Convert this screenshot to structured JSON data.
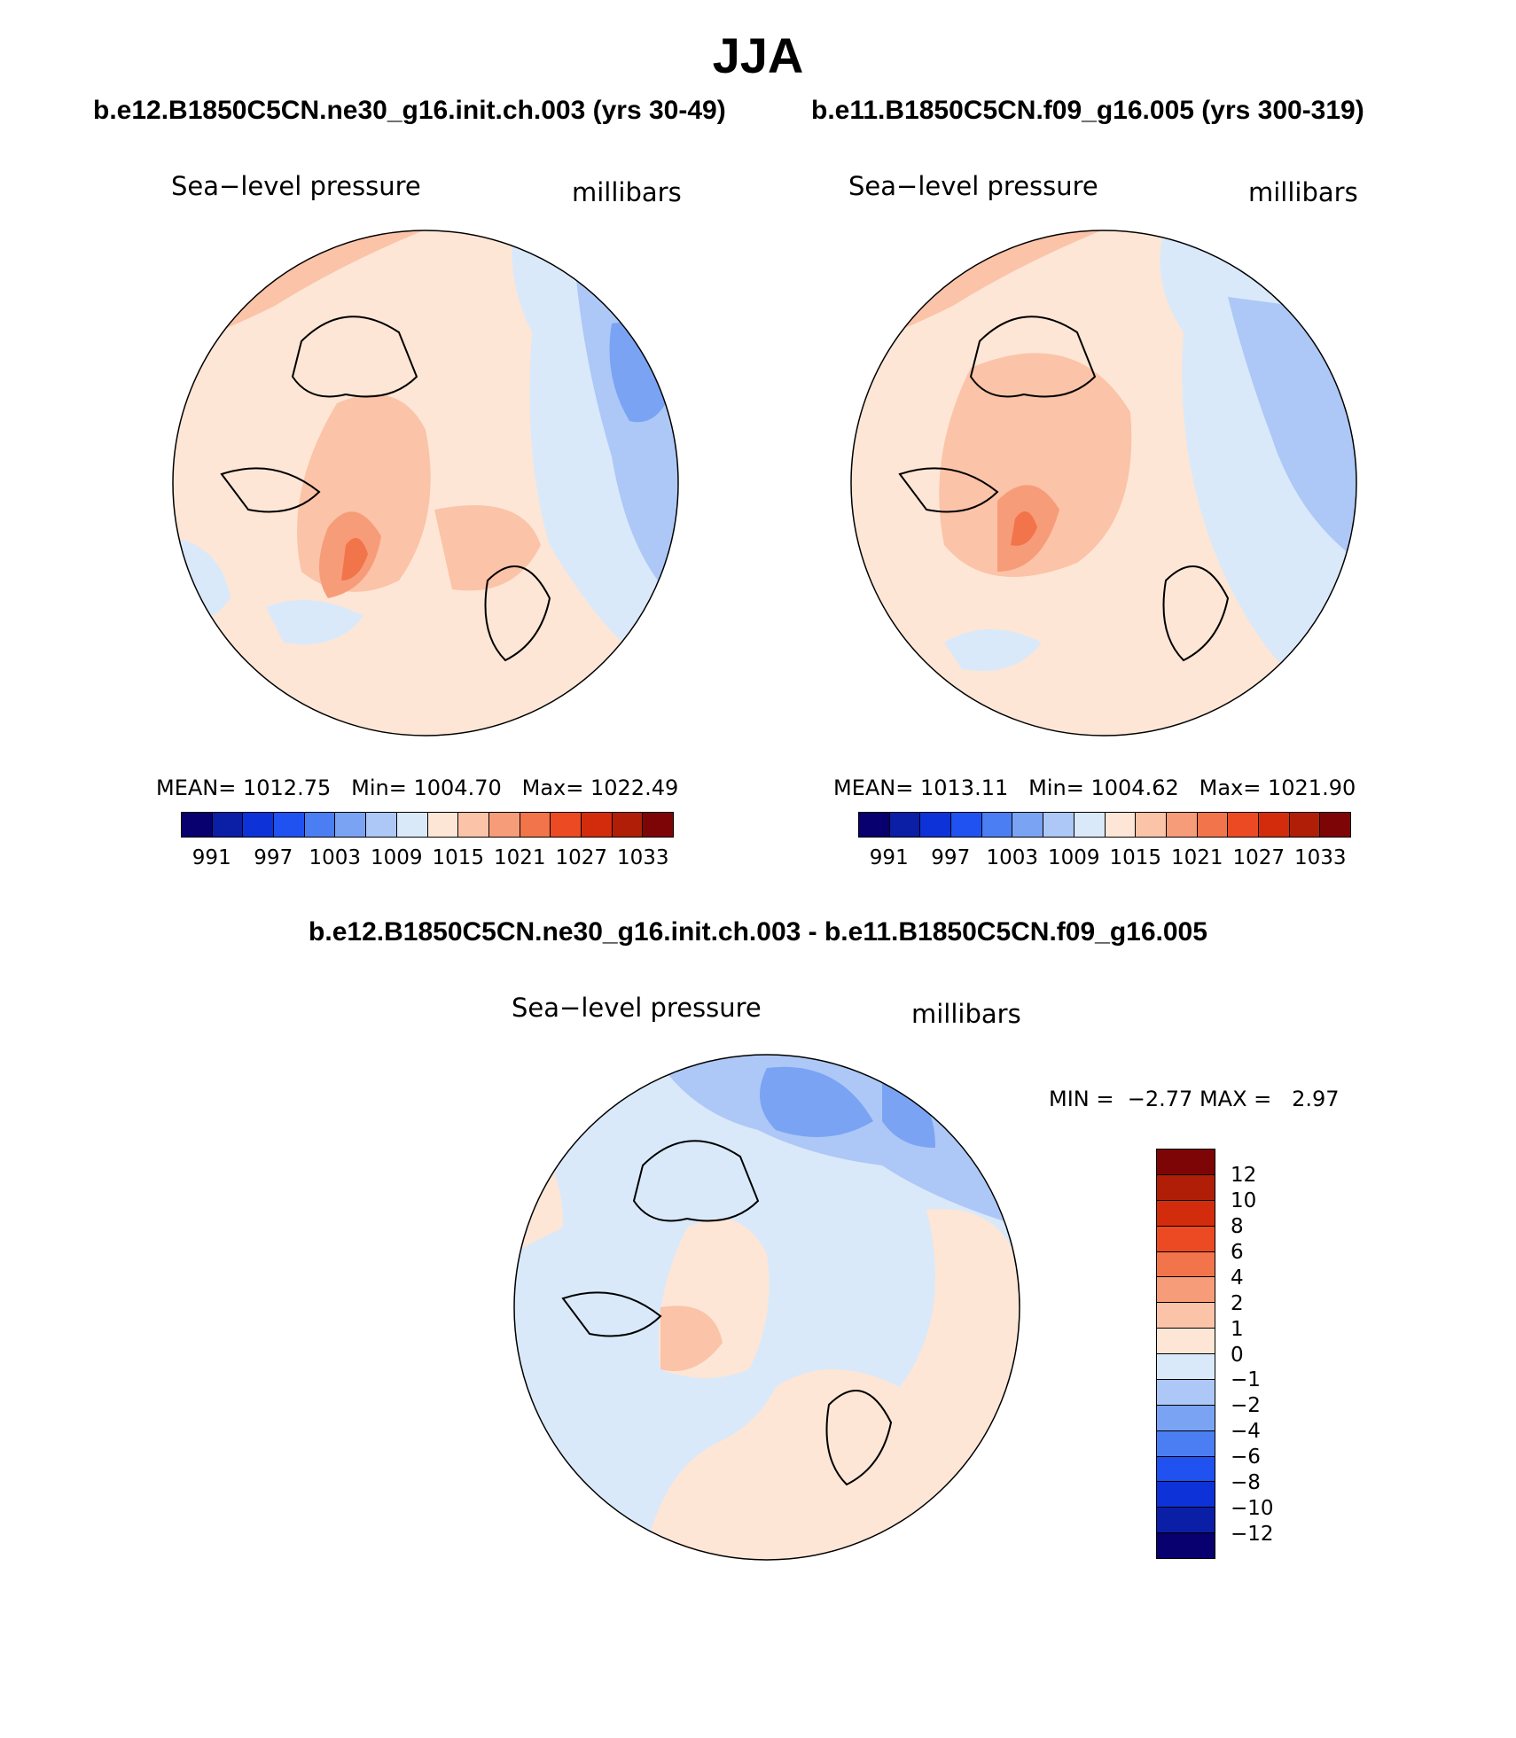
{
  "title": "JJA",
  "panels": [
    {
      "case": "b.e12.B1850C5CN.ne30_g16.init.ch.003 (yrs 30-49)",
      "variable": "Sea−level pressure",
      "units": "millibars",
      "mean_label": "MEAN=",
      "mean": "1012.75",
      "min_label": "Min=",
      "min": "1004.70",
      "max_label": "Max=",
      "max": "1022.49"
    },
    {
      "case": "b.e11.B1850C5CN.f09_g16.005 (yrs 300-319)",
      "variable": "Sea−level pressure",
      "units": "millibars",
      "mean_label": "MEAN=",
      "mean": "1013.11",
      "min_label": "Min=",
      "min": "1004.62",
      "max_label": "Max=",
      "max": "1021.90"
    }
  ],
  "abs_colorbar": {
    "colors": [
      "#08006e",
      "#0a1ea6",
      "#0c32d8",
      "#1f52f0",
      "#4a7ef2",
      "#7aa3f3",
      "#adc8f6",
      "#d9e9fa",
      "#fde6d6",
      "#fbc3a8",
      "#f79c78",
      "#f2744b",
      "#ec4a22",
      "#d32c0c",
      "#b01e07",
      "#7e0505"
    ],
    "ticks": [
      "991",
      "997",
      "1003",
      "1009",
      "1015",
      "1021",
      "1027",
      "1033"
    ]
  },
  "diff": {
    "title": "b.e12.B1850C5CN.ne30_g16.init.ch.003 - b.e11.B1850C5CN.f09_g16.005",
    "variable": "Sea−level pressure",
    "units": "millibars",
    "min_label": "MIN =",
    "min": "−2.77",
    "max_label": "MAX =",
    "max": "2.97",
    "colorbar": {
      "colors": [
        "#7e0505",
        "#b01e07",
        "#d32c0c",
        "#ec4a22",
        "#f2744b",
        "#f79c78",
        "#fbc3a8",
        "#fde6d6",
        "#d9e9fa",
        "#adc8f6",
        "#7aa3f3",
        "#4a7ef2",
        "#1f52f0",
        "#0c32d8",
        "#0a1ea6",
        "#08006e"
      ],
      "ticks": [
        "12",
        "10",
        "8",
        "6",
        "4",
        "2",
        "1",
        "0",
        "−1",
        "−2",
        "−4",
        "−6",
        "−8",
        "−10",
        "−12"
      ]
    }
  }
}
